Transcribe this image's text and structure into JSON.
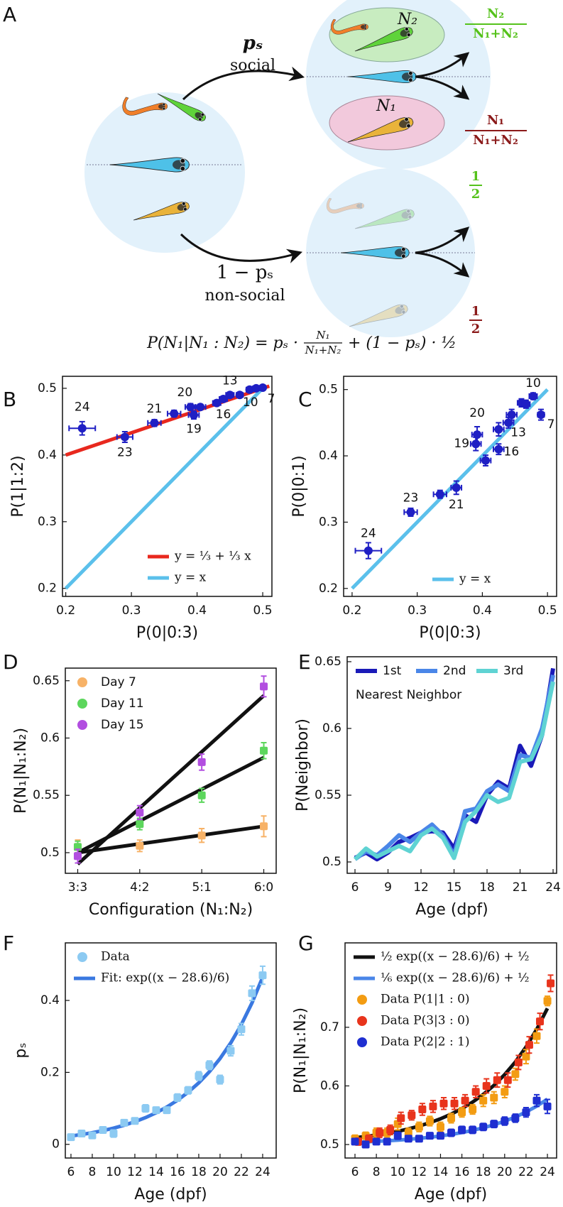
{
  "diagram": {
    "label": "A",
    "social_prob": "pₛ",
    "social": "social",
    "nonsocial_prob": "1 − pₛ",
    "nonsocial": "non-social",
    "group_2": "N₂",
    "group_1": "N₁",
    "outcomes": [
      {
        "num": "N₂",
        "den": "N₁+N₂"
      },
      {
        "num": "N₁",
        "den": "N₁+N₂"
      },
      {
        "num": "1",
        "den": "2"
      },
      {
        "num": "1",
        "den": "2"
      }
    ],
    "formula": {
      "lhs": "P(N₁|N₁ : N₂) = pₛ ·",
      "num": "N₁",
      "den": "N₁+N₂",
      "rhs": "+ (1 − pₛ) · ½"
    }
  },
  "chart_data": [
    {
      "type": "scatter",
      "panel": "B",
      "xlabel": "P(0|0:3)",
      "ylabel": "P(1|1:2)",
      "xlim": [
        0.195,
        0.514
      ],
      "ylim": [
        0.188,
        0.518
      ],
      "xticks": [
        0.2,
        0.3,
        0.4,
        0.5
      ],
      "yticks": [
        0.2,
        0.3,
        0.4,
        0.5
      ],
      "legend": "lower right",
      "marker": "circle",
      "series": [
        {
          "name": "y = ⅓ + ⅓ x",
          "style": "line",
          "color": "#e8281e",
          "x": [
            0.2,
            0.51
          ],
          "values": [
            0.4,
            0.5033
          ]
        },
        {
          "name": "y = x",
          "style": "line",
          "color": "#5bc0eb",
          "x": [
            0.2,
            0.5
          ],
          "values": [
            0.2,
            0.5
          ]
        },
        {
          "style": "markers",
          "color": "#1f1fc4",
          "x": [
            0.225,
            0.29,
            0.335,
            0.365,
            0.39,
            0.395,
            0.405,
            0.43,
            0.44,
            0.45,
            0.465,
            0.48,
            0.49,
            0.5
          ],
          "values": [
            0.44,
            0.427,
            0.448,
            0.462,
            0.472,
            0.46,
            0.472,
            0.478,
            0.484,
            0.49,
            0.49,
            0.498,
            0.5,
            0.501
          ],
          "xerr": [
            0.02,
            0.012,
            0.01,
            0.01,
            0.008,
            0.008,
            0.008,
            0.006,
            0.006,
            0.006,
            0.005,
            0.005,
            0.005,
            0.004
          ],
          "yerr": [
            0.01,
            0.008,
            0.005,
            0.005,
            0.005,
            0.006,
            0.004,
            0.004,
            0.004,
            0.004,
            0.003,
            0.003,
            0.003,
            0.003
          ],
          "labels": [
            "24",
            "23",
            "21",
            null,
            "20",
            "19",
            null,
            null,
            "16",
            "13",
            null,
            null,
            "10",
            "7"
          ]
        }
      ]
    },
    {
      "type": "scatter",
      "panel": "C",
      "xlabel": "P(0|0:3)",
      "ylabel": "P(0|0:1)",
      "xlim": [
        0.187,
        0.514
      ],
      "ylim": [
        0.188,
        0.52
      ],
      "xticks": [
        0.2,
        0.3,
        0.4,
        0.5
      ],
      "yticks": [
        0.2,
        0.3,
        0.4,
        0.5
      ],
      "legend": "lower right",
      "marker": "circle",
      "series": [
        {
          "name": "y = x",
          "style": "line",
          "color": "#5bc0eb",
          "x": [
            0.2,
            0.5
          ],
          "values": [
            0.2,
            0.5
          ]
        },
        {
          "style": "markers",
          "color": "#1f1fc4",
          "x": [
            0.225,
            0.29,
            0.335,
            0.36,
            0.39,
            0.392,
            0.405,
            0.425,
            0.425,
            0.44,
            0.445,
            0.46,
            0.467,
            0.478,
            0.49
          ],
          "values": [
            0.257,
            0.315,
            0.342,
            0.352,
            0.418,
            0.432,
            0.393,
            0.41,
            0.44,
            0.45,
            0.462,
            0.48,
            0.478,
            0.49,
            0.462
          ],
          "xerr": [
            0.02,
            0.01,
            0.01,
            0.008,
            0.008,
            0.008,
            0.008,
            0.008,
            0.008,
            0.008,
            0.008,
            0.006,
            0.006,
            0.006,
            0.005
          ],
          "yerr": [
            0.012,
            0.006,
            0.006,
            0.01,
            0.01,
            0.012,
            0.008,
            0.008,
            0.01,
            0.008,
            0.008,
            0.006,
            0.006,
            0.005,
            0.008
          ],
          "labels": [
            "24",
            "23",
            null,
            "21",
            "19",
            "20",
            null,
            "16",
            null,
            "13",
            null,
            null,
            null,
            "10",
            "7"
          ]
        }
      ]
    },
    {
      "type": "scatter",
      "panel": "D",
      "xlabel": "Configuration (N₁:N₂)",
      "ylabel": "P(N₁|N₁:N₂)",
      "ylim": [
        0.482,
        0.661
      ],
      "categories": [
        "3:3",
        "4:2",
        "5:1",
        "6:0"
      ],
      "yticks": [
        0.5,
        0.55,
        0.6,
        0.65
      ],
      "legend": "upper left",
      "marker": "square",
      "series": [
        {
          "style": "line",
          "color": "#111111",
          "values": [
            0.5,
            0.5077,
            0.5153,
            0.523
          ]
        },
        {
          "style": "line",
          "color": "#111111",
          "values": [
            0.5,
            0.5277,
            0.5553,
            0.583
          ]
        },
        {
          "style": "line",
          "color": "#111111",
          "values": [
            0.49,
            0.539,
            0.588,
            0.637
          ]
        },
        {
          "name": "Day  7",
          "style": "markers",
          "color": "#f7b267",
          "values": [
            0.505,
            0.506,
            0.515,
            0.523
          ],
          "yerr": [
            0.006,
            0.005,
            0.006,
            0.009
          ]
        },
        {
          "name": "Day 11",
          "style": "markers",
          "color": "#5cd65c",
          "values": [
            0.505,
            0.525,
            0.55,
            0.589
          ],
          "yerr": [
            0.005,
            0.005,
            0.006,
            0.007
          ]
        },
        {
          "name": "Day 15",
          "style": "markers",
          "color": "#b24ee0",
          "values": [
            0.497,
            0.535,
            0.579,
            0.645
          ],
          "yerr": [
            0.006,
            0.006,
            0.007,
            0.009
          ]
        }
      ]
    },
    {
      "type": "line",
      "panel": "E",
      "xlabel": "Age (dpf)",
      "ylabel": "P(Neighbor)",
      "xlim": [
        5.29,
        24.32
      ],
      "ylim": [
        0.4915,
        0.6537
      ],
      "xticks": [
        6,
        9,
        12,
        15,
        18,
        21,
        24
      ],
      "yticks": [
        0.5,
        0.55,
        0.6,
        0.65
      ],
      "legend": "upper left",
      "legend_columns": 3,
      "annotation": "Nearest Neighbor",
      "x": [
        6,
        7,
        8,
        9,
        10,
        11,
        12,
        13,
        14,
        15,
        16,
        17,
        18,
        19,
        20,
        21,
        22,
        23,
        24
      ],
      "series": [
        {
          "name": "1st",
          "style": "line",
          "color": "#1a1ab8",
          "values": [
            0.503,
            0.507,
            0.502,
            0.507,
            0.515,
            0.518,
            0.522,
            0.523,
            0.522,
            0.51,
            0.535,
            0.53,
            0.55,
            0.56,
            0.555,
            0.587,
            0.572,
            0.595,
            0.645
          ]
        },
        {
          "name": "2nd",
          "style": "line",
          "color": "#4a86e8",
          "values": [
            0.502,
            0.508,
            0.505,
            0.512,
            0.52,
            0.515,
            0.522,
            0.528,
            0.52,
            0.505,
            0.538,
            0.54,
            0.553,
            0.558,
            0.553,
            0.58,
            0.578,
            0.6,
            0.64
          ]
        },
        {
          "name": "3rd",
          "style": "line",
          "color": "#5fd3d3",
          "values": [
            0.502,
            0.51,
            0.504,
            0.508,
            0.512,
            0.508,
            0.52,
            0.525,
            0.518,
            0.503,
            0.53,
            0.538,
            0.55,
            0.545,
            0.548,
            0.575,
            0.577,
            0.595,
            0.635
          ]
        }
      ]
    },
    {
      "type": "scatter",
      "panel": "F",
      "xlabel": "Age (dpf)",
      "ylabel": "pₛ",
      "xlim": [
        5.47,
        25.27
      ],
      "ylim": [
        -0.038,
        0.56
      ],
      "xticks": [
        6,
        8,
        10,
        12,
        14,
        16,
        18,
        20,
        22,
        24
      ],
      "yticks": [
        0,
        0.2,
        0.4
      ],
      "legend": "upper left",
      "marker": "square",
      "x": [
        6,
        7,
        8,
        9,
        10,
        11,
        12,
        13,
        14,
        15,
        16,
        17,
        18,
        19,
        20,
        21,
        22,
        23,
        24
      ],
      "series": [
        {
          "name": "Data",
          "style": "markers",
          "color": "#8ccaf2",
          "values": [
            0.02,
            0.03,
            0.025,
            0.04,
            0.03,
            0.06,
            0.065,
            0.1,
            0.095,
            0.095,
            0.13,
            0.15,
            0.19,
            0.22,
            0.18,
            0.26,
            0.32,
            0.42,
            0.47
          ],
          "yerr": [
            0.008,
            0.006,
            0.008,
            0.008,
            0.01,
            0.008,
            0.008,
            0.01,
            0.008,
            0.008,
            0.01,
            0.01,
            0.012,
            0.012,
            0.012,
            0.014,
            0.016,
            0.02,
            0.025
          ]
        },
        {
          "name": "Fit: exp((x − 28.6)/6)",
          "style": "line",
          "color": "#3a78e0",
          "values": [
            0.0231,
            0.0273,
            0.0323,
            0.0381,
            0.045,
            0.0532,
            0.0629,
            0.0743,
            0.0878,
            0.1037,
            0.1225,
            0.1447,
            0.1709,
            0.2019,
            0.2385,
            0.2818,
            0.3329,
            0.3932,
            0.4646
          ]
        }
      ]
    },
    {
      "type": "scatter",
      "panel": "G",
      "xlabel": "Age (dpf)",
      "ylabel": "P(N₁|N₁:N₂)",
      "xlim": [
        5.07,
        24.86
      ],
      "ylim": [
        0.477,
        0.844
      ],
      "xticks": [
        6,
        8,
        10,
        12,
        14,
        16,
        18,
        20,
        22,
        24
      ],
      "yticks": [
        0.5,
        0.6,
        0.7
      ],
      "legend": "upper left",
      "marker": "square",
      "x": [
        6,
        7,
        8,
        9,
        10,
        11,
        12,
        13,
        14,
        15,
        16,
        17,
        18,
        19,
        20,
        21,
        22,
        23,
        24
      ],
      "series": [
        {
          "name": "½ exp((x − 28.6)/6) + ½",
          "style": "line",
          "color": "#111111",
          "values": [
            0.5116,
            0.5137,
            0.5162,
            0.5191,
            0.5225,
            0.5266,
            0.5315,
            0.5372,
            0.5439,
            0.5519,
            0.5613,
            0.5724,
            0.5855,
            0.601,
            0.6193,
            0.6409,
            0.6665,
            0.6966,
            0.7323
          ]
        },
        {
          "name": "⅙ exp((x − 28.6)/6) + ½",
          "style": "line",
          "color": "#4a86e8",
          "values": [
            0.5039,
            0.5046,
            0.5054,
            0.5064,
            0.5075,
            0.5089,
            0.5105,
            0.5124,
            0.5146,
            0.5173,
            0.5204,
            0.5241,
            0.5285,
            0.5337,
            0.5398,
            0.547,
            0.5555,
            0.5655,
            0.5774
          ]
        },
        {
          "name": "Data P(1|1 : 0)",
          "style": "markers",
          "color": "#f39c12",
          "values": [
            0.51,
            0.515,
            0.52,
            0.52,
            0.535,
            0.52,
            0.53,
            0.54,
            0.53,
            0.545,
            0.555,
            0.56,
            0.575,
            0.58,
            0.59,
            0.62,
            0.65,
            0.685,
            0.745
          ],
          "yerr": [
            0.006,
            0.006,
            0.008,
            0.008,
            0.01,
            0.008,
            0.008,
            0.008,
            0.008,
            0.008,
            0.008,
            0.008,
            0.01,
            0.01,
            0.01,
            0.01,
            0.012,
            0.012,
            0.008
          ]
        },
        {
          "name": "Data P(3|3 : 0)",
          "style": "markers",
          "color": "#e8341c",
          "x": [
            6.3,
            7.3,
            8.3,
            9.3,
            10.3,
            11.3,
            12.3,
            13.3,
            14.3,
            15.3,
            16.3,
            17.3,
            18.3,
            19.3,
            20.3,
            21.3,
            22.3,
            23.3,
            24.3
          ],
          "values": [
            0.505,
            0.51,
            0.52,
            0.525,
            0.545,
            0.55,
            0.56,
            0.565,
            0.57,
            0.57,
            0.575,
            0.59,
            0.6,
            0.61,
            0.61,
            0.64,
            0.67,
            0.71,
            0.775
          ],
          "yerr": [
            0.006,
            0.006,
            0.008,
            0.008,
            0.01,
            0.008,
            0.01,
            0.01,
            0.01,
            0.01,
            0.01,
            0.01,
            0.012,
            0.012,
            0.012,
            0.012,
            0.014,
            0.014,
            0.014
          ]
        },
        {
          "name": "Data P(2|2 : 1)",
          "style": "markers",
          "color": "#1f2fd1",
          "values": [
            0.505,
            0.5,
            0.505,
            0.505,
            0.515,
            0.51,
            0.51,
            0.515,
            0.515,
            0.52,
            0.525,
            0.525,
            0.53,
            0.535,
            0.54,
            0.545,
            0.555,
            0.575,
            0.565
          ],
          "yerr": [
            0.005,
            0.005,
            0.005,
            0.005,
            0.006,
            0.005,
            0.005,
            0.005,
            0.005,
            0.006,
            0.006,
            0.006,
            0.006,
            0.006,
            0.007,
            0.007,
            0.008,
            0.01,
            0.012
          ]
        }
      ]
    }
  ]
}
